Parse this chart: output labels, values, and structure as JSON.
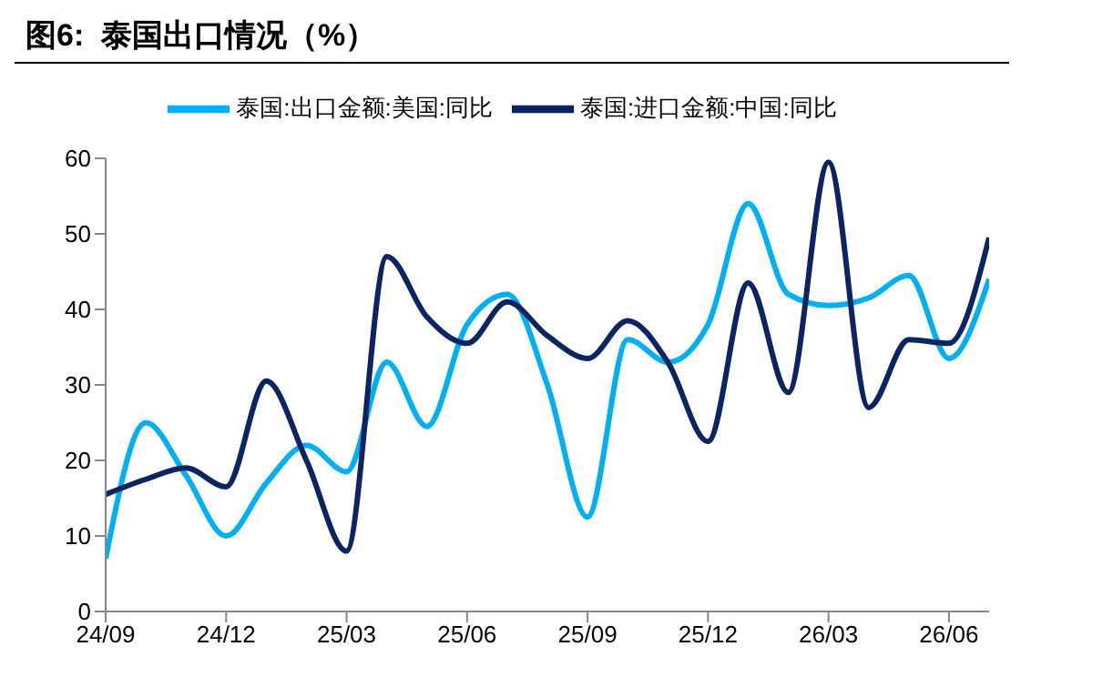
{
  "chart_data": {
    "type": "line",
    "title": "图6:  泰国出口情况（%）",
    "categories": [
      "24/09",
      null,
      null,
      "24/12",
      null,
      null,
      "25/03",
      null,
      null,
      "25/06",
      null,
      null,
      "25/09",
      null,
      null,
      "25/12",
      null,
      null,
      "26/03",
      null,
      null,
      "26/06",
      null
    ],
    "series": [
      {
        "name": "泰国:出口金额:美国:同比",
        "color": "#00b0f0",
        "values": [
          7,
          25,
          18,
          10,
          17,
          22,
          18.5,
          33,
          24.5,
          38,
          42,
          30,
          12.5,
          36,
          33,
          38,
          54,
          42,
          40.5,
          41.5,
          44.5,
          33.5,
          44
        ]
      },
      {
        "name": "泰国:进口金额:中国:同比",
        "color": "#0c2461",
        "values": [
          15.5,
          17.5,
          19,
          16.5,
          30.5,
          20,
          8,
          47,
          39,
          35.5,
          41,
          36.5,
          33.5,
          38.5,
          33,
          22.5,
          43.5,
          29,
          59.5,
          27,
          36,
          35.5,
          49.5
        ]
      }
    ],
    "ylim": [
      0,
      60
    ],
    "yticks": [
      0,
      10,
      20,
      30,
      40,
      50,
      60
    ],
    "legend": "top",
    "marker": "none",
    "line_style": "solid"
  }
}
